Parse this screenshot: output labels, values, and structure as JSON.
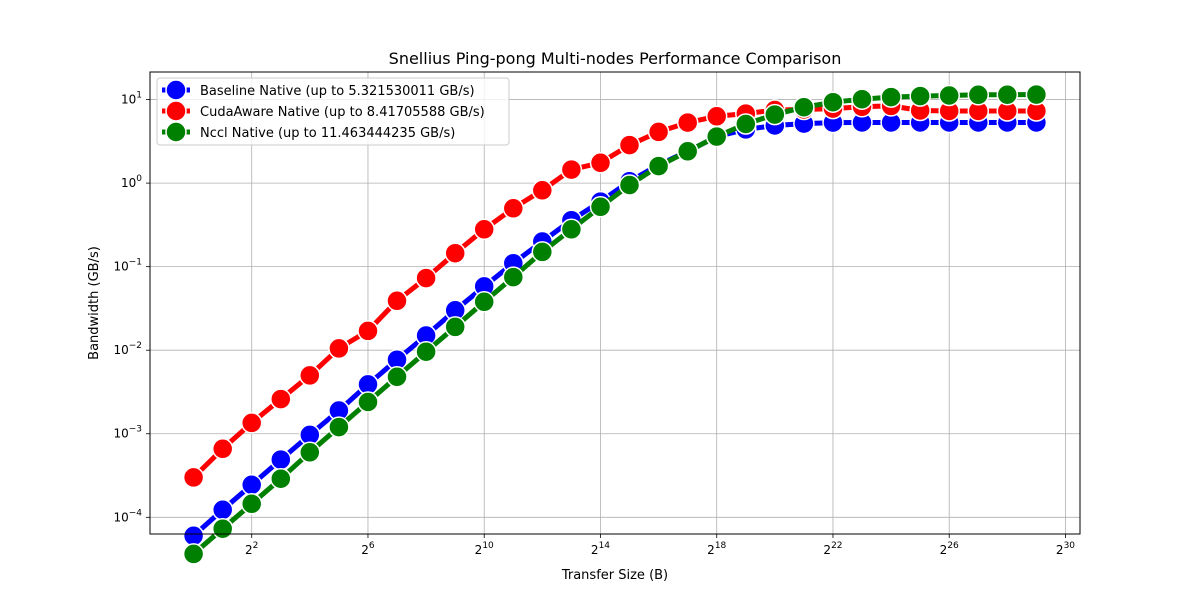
{
  "chart_data": {
    "type": "line",
    "title": "Snellius Ping-pong Multi-nodes Performance Comparison",
    "xlabel": "Transfer Size (B)",
    "ylabel": "Bandwidth (GB/s)",
    "x_scale": "log2",
    "y_scale": "log10",
    "grid": true,
    "legend_position": "top-left",
    "x_ticks": [
      {
        "base": "2",
        "exp": "2",
        "value": 4
      },
      {
        "base": "2",
        "exp": "6",
        "value": 64
      },
      {
        "base": "2",
        "exp": "10",
        "value": 1024
      },
      {
        "base": "2",
        "exp": "14",
        "value": 16384
      },
      {
        "base": "2",
        "exp": "18",
        "value": 262144
      },
      {
        "base": "2",
        "exp": "22",
        "value": 4194304
      },
      {
        "base": "2",
        "exp": "26",
        "value": 67108864
      },
      {
        "base": "2",
        "exp": "30",
        "value": 1073741824
      }
    ],
    "y_ticks": [
      {
        "base": "10",
        "exp": "−4",
        "value": 0.0001
      },
      {
        "base": "10",
        "exp": "−3",
        "value": 0.001
      },
      {
        "base": "10",
        "exp": "−2",
        "value": 0.01
      },
      {
        "base": "10",
        "exp": "−1",
        "value": 0.1
      },
      {
        "base": "10",
        "exp": "0",
        "value": 1
      },
      {
        "base": "10",
        "exp": "1",
        "value": 10
      }
    ],
    "x": [
      1,
      2,
      4,
      8,
      16,
      32,
      64,
      128,
      256,
      512,
      1024,
      2048,
      4096,
      8192,
      16384,
      32768,
      65536,
      131072,
      262144,
      524288,
      1048576,
      2097152,
      4194304,
      8388608,
      16777216,
      33554432,
      67108864,
      134217728,
      268435456,
      536870912
    ],
    "series": [
      {
        "name": "Baseline Native (up to 5.321530011 GB/s)",
        "color": "#0000ff",
        "values": [
          6e-05,
          0.000123,
          0.000245,
          0.00049,
          0.00097,
          0.0019,
          0.0039,
          0.0077,
          0.015,
          0.03,
          0.058,
          0.11,
          0.2,
          0.36,
          0.6,
          1.05,
          1.65,
          2.4,
          3.6,
          4.4,
          4.9,
          5.15,
          5.3,
          5.32,
          5.32,
          5.32,
          5.32,
          5.32,
          5.32,
          5.32
        ]
      },
      {
        "name": "CudaAware Native (up to 8.41705588 GB/s)",
        "color": "#ff0000",
        "values": [
          0.0003,
          0.00066,
          0.00135,
          0.0026,
          0.005,
          0.0105,
          0.017,
          0.039,
          0.073,
          0.145,
          0.28,
          0.5,
          0.82,
          1.45,
          1.75,
          2.85,
          4.1,
          5.3,
          6.3,
          6.8,
          7.5,
          7.6,
          7.8,
          8.2,
          8.4,
          7.4,
          7.3,
          7.3,
          7.3,
          7.3
        ]
      },
      {
        "name": "Nccl Native (up to 11.463444235 GB/s)",
        "color": "#008000",
        "values": [
          3.65e-05,
          7.3e-05,
          0.000145,
          0.00029,
          0.0006,
          0.0012,
          0.0024,
          0.0048,
          0.0096,
          0.019,
          0.038,
          0.075,
          0.15,
          0.28,
          0.52,
          0.95,
          1.6,
          2.4,
          3.6,
          5.1,
          6.6,
          8.1,
          9.3,
          10.1,
          10.7,
          11.0,
          11.2,
          11.4,
          11.45,
          11.463
        ]
      }
    ]
  }
}
